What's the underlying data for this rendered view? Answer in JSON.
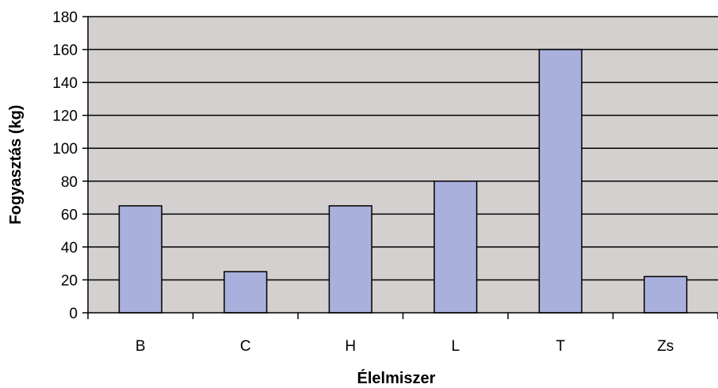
{
  "chart_data": {
    "type": "bar",
    "title": "",
    "xlabel": "Élelmiszer",
    "ylabel": "Fogyasztás (kg)",
    "categories": [
      "B",
      "C",
      "H",
      "L",
      "T",
      "Zs"
    ],
    "values": [
      65,
      25,
      65,
      80,
      160,
      22
    ],
    "ylim": [
      0,
      180
    ],
    "yticks": [
      "0",
      "20",
      "40",
      "60",
      "80",
      "100",
      "120",
      "140",
      "160",
      "180"
    ],
    "grid": true,
    "legend": "none",
    "colors": {
      "plot_background": "#d4d0d0",
      "bar_fill": "#aab0dc",
      "bar_stroke": "#000000",
      "grid": "#000000"
    }
  }
}
